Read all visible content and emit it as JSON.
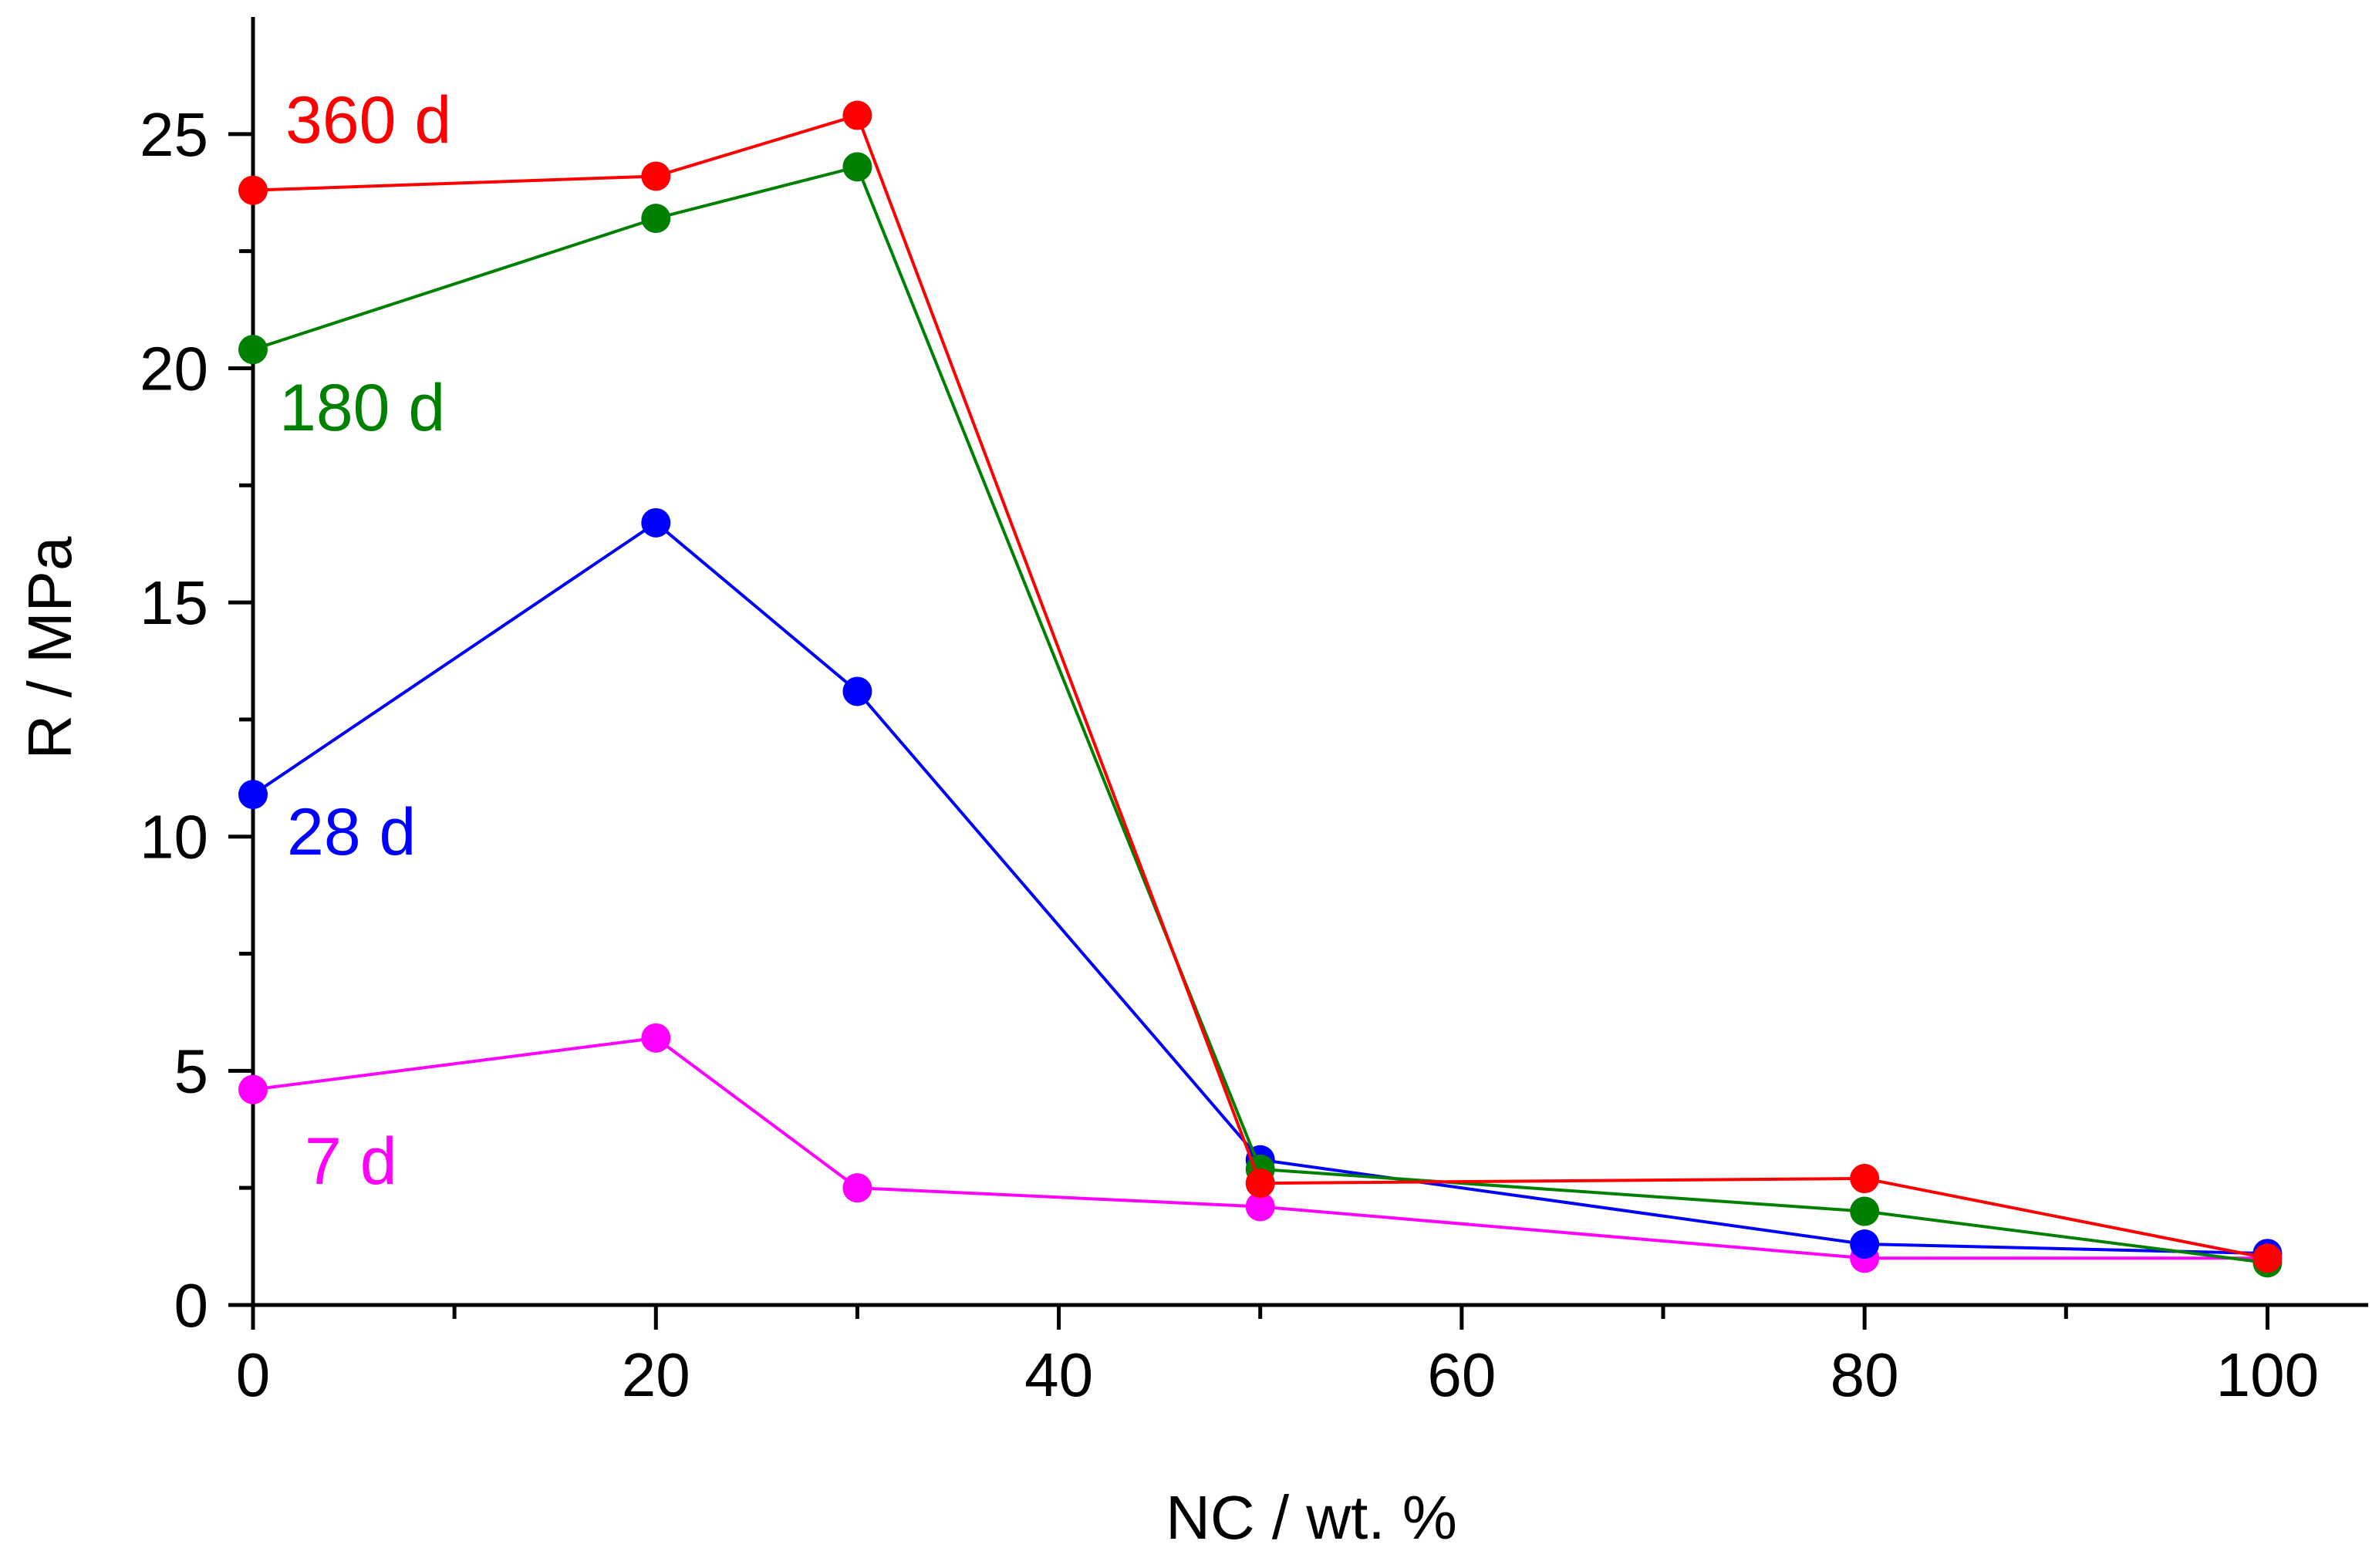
{
  "chart_data": {
    "type": "line",
    "title": "",
    "xlabel": "NC / wt. %",
    "ylabel": "R / MPa",
    "xlim": [
      0,
      105
    ],
    "ylim": [
      0,
      27.5
    ],
    "x_ticks": [
      0,
      20,
      40,
      60,
      80,
      100
    ],
    "x_minor_ticks": [
      10,
      30,
      50,
      70,
      90
    ],
    "y_ticks": [
      0,
      5,
      10,
      15,
      20,
      25
    ],
    "y_minor_ticks": [
      2.5,
      7.5,
      12.5,
      17.5,
      22.5
    ],
    "x": [
      0,
      20,
      30,
      50,
      80,
      100
    ],
    "series": [
      {
        "name": "7 d",
        "color": "#ff00ff",
        "values": [
          4.6,
          5.7,
          2.5,
          2.1,
          1.0,
          1.0
        ]
      },
      {
        "name": "28 d",
        "color": "#0000ff",
        "values": [
          10.9,
          16.7,
          13.1,
          3.1,
          1.3,
          1.1
        ]
      },
      {
        "name": "180 d",
        "color": "#008000",
        "values": [
          20.4,
          23.2,
          24.3,
          2.9,
          2.0,
          0.9
        ]
      },
      {
        "name": "360 d",
        "color": "#ff0000",
        "values": [
          23.8,
          24.1,
          25.4,
          2.6,
          2.7,
          1.0
        ]
      }
    ],
    "grid": false,
    "legend": "inline labels near left of each series"
  }
}
